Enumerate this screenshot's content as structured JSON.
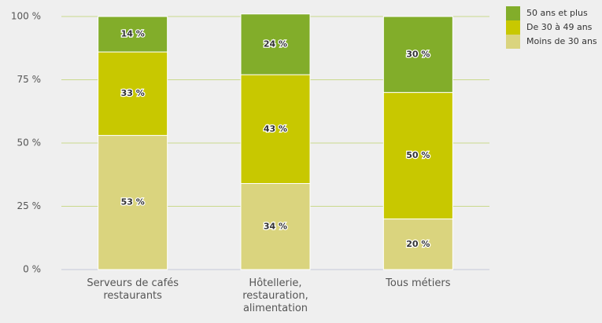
{
  "chart_data": {
    "type": "stacked_bar",
    "categories": [
      "Serveurs de cafés\nrestaurants",
      "Hôtellerie,\nrestauration,\nalimentation",
      "Tous métiers"
    ],
    "series": [
      {
        "name": "Moins de 30 ans",
        "color": "#dad47e",
        "values": [
          53,
          34,
          20
        ],
        "value_labels": [
          "53 %",
          "34 %",
          "20 %"
        ]
      },
      {
        "name": "De 30 à 49 ans",
        "color": "#c8c800",
        "values": [
          33,
          43,
          50
        ],
        "value_labels": [
          "33 %",
          "43 %",
          "50 %"
        ]
      },
      {
        "name": "50 ans et plus",
        "color": "#82ad2a",
        "values": [
          14,
          24,
          30
        ],
        "value_labels": [
          "14 %",
          "24 %",
          "30 %"
        ]
      }
    ],
    "ylim": [
      0,
      100
    ],
    "yticks": [
      {
        "value": 0,
        "label": "0 %"
      },
      {
        "value": 25,
        "label": "25 %"
      },
      {
        "value": 50,
        "label": "50 %"
      },
      {
        "value": 75,
        "label": "75 %"
      },
      {
        "value": 100,
        "label": "100 %"
      }
    ],
    "grid": true,
    "legend": "top-right"
  }
}
